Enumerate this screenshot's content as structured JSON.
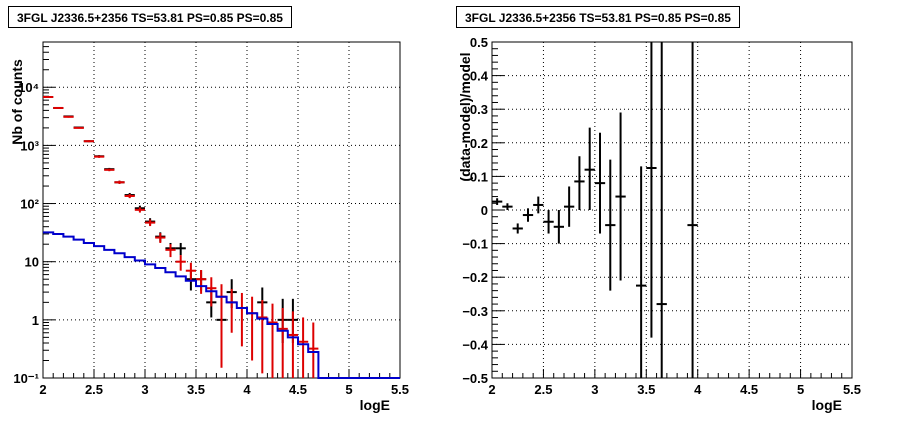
{
  "chart_data": [
    {
      "type": "scatter",
      "title": "3FGL J2336.5+2356 TS=53.81 PS=0.85 PS=0.85",
      "xlabel": "logE",
      "ylabel": "Nb of counts",
      "xlim": [
        2,
        5.5
      ],
      "ylim": [
        0.1,
        60000
      ],
      "yscale": "log",
      "grid": true,
      "xticks": [
        "2",
        "2.5",
        "3",
        "3.5",
        "4",
        "4.5",
        "5",
        "5.5"
      ],
      "yticks": [
        "10⁻¹",
        "1",
        "10",
        "10²",
        "10³",
        "10⁴"
      ],
      "series": [
        {
          "role": "data",
          "color": "#000000",
          "points": [
            {
              "x": 2.05,
              "y": 6800,
              "ylo": 6600,
              "yhi": 7000
            },
            {
              "x": 2.15,
              "y": 4400,
              "ylo": 4300,
              "yhi": 4500
            },
            {
              "x": 2.25,
              "y": 3150,
              "ylo": 3050,
              "yhi": 3250
            },
            {
              "x": 2.35,
              "y": 2030,
              "ylo": 1980,
              "yhi": 2080
            },
            {
              "x": 2.45,
              "y": 1180,
              "ylo": 1140,
              "yhi": 1220
            },
            {
              "x": 2.55,
              "y": 650,
              "ylo": 620,
              "yhi": 680
            },
            {
              "x": 2.65,
              "y": 390,
              "ylo": 370,
              "yhi": 410
            },
            {
              "x": 2.75,
              "y": 232,
              "ylo": 217,
              "yhi": 247
            },
            {
              "x": 2.85,
              "y": 140,
              "ylo": 128,
              "yhi": 152
            },
            {
              "x": 2.95,
              "y": 83,
              "ylo": 74,
              "yhi": 92
            },
            {
              "x": 3.05,
              "y": 49,
              "ylo": 42,
              "yhi": 56
            },
            {
              "x": 3.15,
              "y": 27,
              "ylo": 22,
              "yhi": 32
            },
            {
              "x": 3.25,
              "y": 17,
              "ylo": 13,
              "yhi": 21
            },
            {
              "x": 3.35,
              "y": 17,
              "ylo": 13,
              "yhi": 21
            },
            {
              "x": 3.45,
              "y": 5,
              "ylo": 3.2,
              "yhi": 7.1
            },
            {
              "x": 3.55,
              "y": 5,
              "ylo": 3.2,
              "yhi": 7.1
            },
            {
              "x": 3.65,
              "y": 2,
              "ylo": 1.1,
              "yhi": 3.6
            },
            {
              "x": 3.75,
              "y": 1,
              "ylo": 0.4,
              "yhi": 2.3
            },
            {
              "x": 3.85,
              "y": 3,
              "ylo": 1.6,
              "yhi": 5.0
            },
            {
              "x": 4.15,
              "y": 2,
              "ylo": 1.1,
              "yhi": 3.6
            },
            {
              "x": 4.35,
              "y": 1,
              "ylo": 0.4,
              "yhi": 2.3
            },
            {
              "x": 4.45,
              "y": 1,
              "ylo": 0.4,
              "yhi": 2.3
            }
          ]
        },
        {
          "role": "model-total",
          "color": "#dd0000",
          "points": [
            {
              "x": 2.05,
              "y": 6800,
              "ylo": 6600,
              "yhi": 7000
            },
            {
              "x": 2.15,
              "y": 4400,
              "ylo": 4300,
              "yhi": 4500
            },
            {
              "x": 2.25,
              "y": 3100,
              "ylo": 3000,
              "yhi": 3200
            },
            {
              "x": 2.35,
              "y": 2000,
              "ylo": 1950,
              "yhi": 2050
            },
            {
              "x": 2.45,
              "y": 1180,
              "ylo": 1140,
              "yhi": 1220
            },
            {
              "x": 2.55,
              "y": 640,
              "ylo": 610,
              "yhi": 670
            },
            {
              "x": 2.65,
              "y": 380,
              "ylo": 360,
              "yhi": 400
            },
            {
              "x": 2.75,
              "y": 232,
              "ylo": 217,
              "yhi": 247
            },
            {
              "x": 2.85,
              "y": 135,
              "ylo": 124,
              "yhi": 146
            },
            {
              "x": 2.95,
              "y": 78,
              "ylo": 70,
              "yhi": 86
            },
            {
              "x": 3.05,
              "y": 47,
              "ylo": 41,
              "yhi": 53
            },
            {
              "x": 3.15,
              "y": 26,
              "ylo": 21,
              "yhi": 31
            },
            {
              "x": 3.25,
              "y": 16,
              "ylo": 12,
              "yhi": 20
            },
            {
              "x": 3.35,
              "y": 10,
              "ylo": 7,
              "yhi": 13
            },
            {
              "x": 3.45,
              "y": 7,
              "ylo": 4.5,
              "yhi": 9.6
            },
            {
              "x": 3.55,
              "y": 5,
              "ylo": 2.8,
              "yhi": 7.2
            },
            {
              "x": 3.65,
              "y": 3.5,
              "ylo": 1.7,
              "yhi": 5.4
            },
            {
              "x": 3.75,
              "y": 2.5,
              "ylo": 0.15,
              "yhi": 4.1
            },
            {
              "x": 3.85,
              "y": 2,
              "ylo": 0.6,
              "yhi": 3.4
            },
            {
              "x": 3.95,
              "y": 1.6,
              "ylo": 0.35,
              "yhi": 2.9
            },
            {
              "x": 4.05,
              "y": 1.3,
              "ylo": 0.2,
              "yhi": 2.5
            },
            {
              "x": 4.15,
              "y": 1.1,
              "ylo": 0.12,
              "yhi": 2.2
            },
            {
              "x": 4.25,
              "y": 0.9,
              "ylo": 0.1,
              "yhi": 1.9
            },
            {
              "x": 4.35,
              "y": 0.7,
              "ylo": 0.1,
              "yhi": 1.6
            },
            {
              "x": 4.45,
              "y": 0.55,
              "ylo": 0.1,
              "yhi": 1.4
            },
            {
              "x": 4.55,
              "y": 0.42,
              "ylo": 0.1,
              "yhi": 1.1
            },
            {
              "x": 4.65,
              "y": 0.32,
              "ylo": 0.1,
              "yhi": 0.9
            }
          ]
        },
        {
          "role": "model-background",
          "color": "#0000cc",
          "draw": "histogram",
          "bin_width": 0.1,
          "x_lo": [
            2.0,
            2.1,
            2.2,
            2.3,
            2.4,
            2.5,
            2.6,
            2.7,
            2.8,
            2.9,
            3.0,
            3.1,
            3.2,
            3.3,
            3.4,
            3.5,
            3.6,
            3.7,
            3.8,
            3.9,
            4.0,
            4.1,
            4.2,
            4.3,
            4.4,
            4.5,
            4.6,
            4.7,
            4.8,
            4.9,
            5.0,
            5.1,
            5.2,
            5.3,
            5.4
          ],
          "y": [
            32,
            30,
            27,
            24,
            21,
            18.5,
            16,
            14,
            12,
            10.5,
            9,
            7.8,
            6.6,
            5.6,
            4.7,
            3.8,
            3.1,
            2.5,
            2,
            1.6,
            1.3,
            1.05,
            0.85,
            0.65,
            0.5,
            0.38,
            0.28,
            0.1,
            0.1,
            0.1,
            0.1,
            0.1,
            0.1,
            0.1,
            0.1
          ]
        }
      ]
    },
    {
      "type": "scatter",
      "title": "3FGL J2336.5+2356 TS=53.81 PS=0.85 PS=0.85",
      "xlabel": "logE",
      "ylabel": "(data-model)/model",
      "xlim": [
        2,
        5.5
      ],
      "ylim": [
        -0.5,
        0.5
      ],
      "grid": true,
      "xticks": [
        "2",
        "2.5",
        "3",
        "3.5",
        "4",
        "4.5",
        "5",
        "5.5"
      ],
      "yticks": [
        "−0.5",
        "−0.4",
        "−0.3",
        "−0.2",
        "−0.1",
        "0",
        "0.1",
        "0.2",
        "0.3",
        "0.4",
        "0.5"
      ],
      "series": [
        {
          "role": "residual",
          "color": "#000000",
          "points": [
            {
              "x": 2.05,
              "y": 0.025,
              "ylo": 0.015,
              "yhi": 0.035
            },
            {
              "x": 2.15,
              "y": 0.01,
              "ylo": 0.0,
              "yhi": 0.02
            },
            {
              "x": 2.25,
              "y": -0.055,
              "ylo": -0.07,
              "yhi": -0.04
            },
            {
              "x": 2.35,
              "y": -0.015,
              "ylo": -0.035,
              "yhi": 0.005
            },
            {
              "x": 2.45,
              "y": 0.015,
              "ylo": -0.01,
              "yhi": 0.04
            },
            {
              "x": 2.55,
              "y": -0.035,
              "ylo": -0.07,
              "yhi": 0.0
            },
            {
              "x": 2.65,
              "y": -0.05,
              "ylo": -0.1,
              "yhi": 0.0
            },
            {
              "x": 2.75,
              "y": 0.01,
              "ylo": -0.05,
              "yhi": 0.07
            },
            {
              "x": 2.85,
              "y": 0.085,
              "ylo": 0.0,
              "yhi": 0.16
            },
            {
              "x": 2.95,
              "y": 0.12,
              "ylo": 0.0,
              "yhi": 0.245
            },
            {
              "x": 3.05,
              "y": 0.08,
              "ylo": -0.07,
              "yhi": 0.23
            },
            {
              "x": 3.15,
              "y": -0.045,
              "ylo": -0.24,
              "yhi": 0.15
            },
            {
              "x": 3.25,
              "y": 0.04,
              "ylo": -0.21,
              "yhi": 0.29
            },
            {
              "x": 3.45,
              "y": -0.225,
              "ylo": -0.5,
              "yhi": 0.13
            },
            {
              "x": 3.55,
              "y": 0.125,
              "ylo": -0.38,
              "yhi": 0.5
            },
            {
              "x": 3.65,
              "y": -0.28,
              "ylo": -0.5,
              "yhi": 0.5
            },
            {
              "x": 3.95,
              "y": -0.045,
              "ylo": -0.5,
              "yhi": 0.5
            }
          ]
        }
      ]
    }
  ]
}
